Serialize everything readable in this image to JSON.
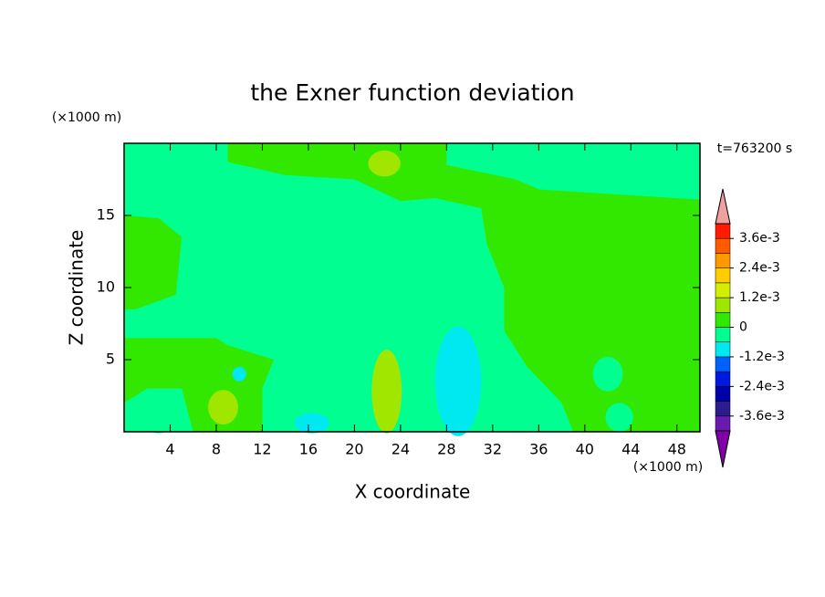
{
  "chart_data": {
    "type": "contour",
    "title": "the Exner function deviation",
    "x_label": "X coordinate",
    "y_label": "Z coordinate",
    "x_unit": "(×1000 m)",
    "y_unit": "(×1000 m)",
    "annotation": "t=763200 s",
    "xlim": [
      0,
      50
    ],
    "xticks": [
      4,
      8,
      12,
      16,
      20,
      24,
      28,
      32,
      36,
      40,
      44,
      48
    ],
    "ylim": [
      0,
      20
    ],
    "yticks": [
      5,
      10,
      15
    ],
    "colorbar": {
      "levels": [
        -0.0042,
        -0.0036,
        -0.003,
        -0.0024,
        -0.0018,
        -0.0012,
        -0.0006,
        0,
        0.0006,
        0.0012,
        0.0018,
        0.0024,
        0.003,
        0.0036,
        0.0042
      ],
      "colors": [
        "#6a1ab0",
        "#2c1c8c",
        "#0000a8",
        "#0018e0",
        "#0060ff",
        "#00e8f0",
        "#00ff90",
        "#33e800",
        "#a0e600",
        "#d4ee00",
        "#ffcc00",
        "#ff9900",
        "#ff5a00",
        "#ff1a00"
      ],
      "under_color": "#8000a8",
      "over_color": "#f0a0a0",
      "ticks": [
        {
          "value": -0.0036,
          "label": "-3.6e-3"
        },
        {
          "value": -0.0024,
          "label": "-2.4e-3"
        },
        {
          "value": -0.0012,
          "label": "-1.2e-3"
        },
        0,
        {
          "value": 0.0012,
          "label": "1.2e-3"
        },
        {
          "value": 0.0024,
          "label": "2.4e-3"
        },
        {
          "value": 0.0036,
          "label": "3.6e-3"
        }
      ]
    }
  }
}
